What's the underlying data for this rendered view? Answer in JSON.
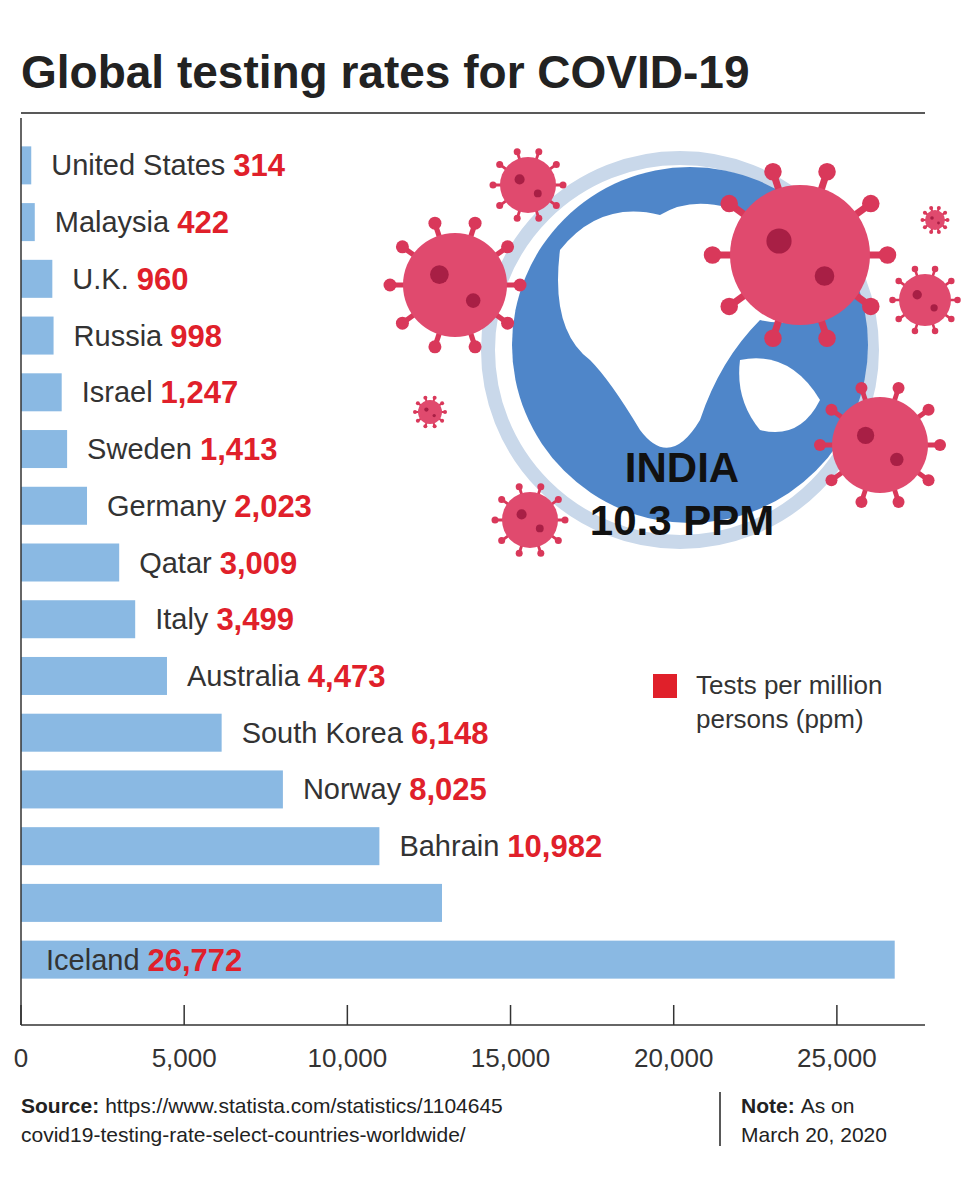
{
  "chart_data": {
    "type": "bar",
    "orientation": "horizontal",
    "title": "Global testing rates for COVID-19",
    "categories": [
      "United States",
      "Malaysia",
      "U.K.",
      "Russia",
      "Israel",
      "Sweden",
      "Germany",
      "Qatar",
      "Italy",
      "Australia",
      "South Korea",
      "Norway",
      "Bahrain",
      null,
      "Iceland"
    ],
    "values": [
      314,
      422,
      960,
      998,
      1247,
      1413,
      2023,
      3009,
      3499,
      4473,
      6148,
      8025,
      10982,
      12900,
      26772
    ],
    "value_labels": [
      "314",
      "422",
      "960",
      "998",
      "1,247",
      "1,413",
      "2,023",
      "3,009",
      "3,499",
      "4,473",
      "6,148",
      "8,025",
      "10,982",
      null,
      "26,772"
    ],
    "color": "#8ab9e3",
    "data_labels": true,
    "grid": false,
    "tick_labels": "x",
    "xlim": [
      0,
      27700
    ],
    "xticks": [
      0,
      {
        "value": 5000,
        "label": "5,000"
      },
      {
        "value": 10000,
        "label": "10,000"
      },
      {
        "value": 15000,
        "label": "15,000"
      },
      {
        "value": 20000,
        "label": "20,000"
      },
      {
        "value": 25000,
        "label": "25,000"
      }
    ],
    "annotations": [
      "INDIA",
      "10.3 PPM"
    ],
    "legend_label": "Tests per million persons (ppm)",
    "source_label": "Source:",
    "source": [
      "https://www.statista.com/statistics/1104645",
      "covid19-testing-rate-select-countries-worldwide/"
    ],
    "note_label": "Note:",
    "note": [
      "As on",
      "March 20, 2020"
    ]
  }
}
